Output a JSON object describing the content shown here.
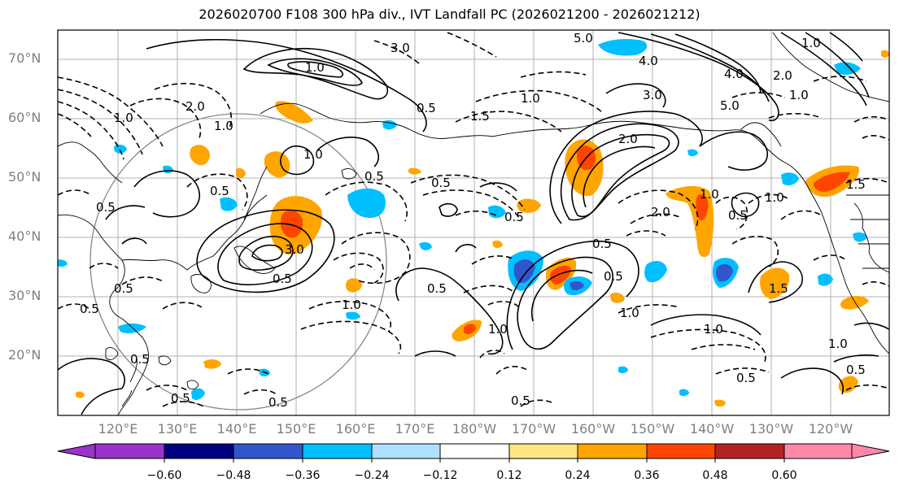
{
  "title": "2026020700 F108 300 hPa div., IVT Landfall PC (2026021200 - 2026021212)",
  "lat_labels": [
    "70°N",
    "60°N",
    "50°N",
    "40°N",
    "30°N",
    "20°N"
  ],
  "lon_labels": [
    "120°E",
    "130°E",
    "140°E",
    "150°E",
    "160°E",
    "170°E",
    "180°W",
    "170°W",
    "160°W",
    "150°W",
    "140°W",
    "130°W",
    "120°W"
  ],
  "colorbar": {
    "ticks": [
      "−0.60",
      "−0.48",
      "−0.36",
      "−0.24",
      "−0.12",
      "0.12",
      "0.24",
      "0.36",
      "0.48",
      "0.60"
    ],
    "colors": [
      "#9933cc",
      "#000080",
      "#3355cc",
      "#00bfff",
      "#b0e0ff",
      "#ffffff",
      "#ffe680",
      "#ffa500",
      "#ff4500",
      "#b22222",
      "#ff88aa"
    ]
  },
  "contour_labels": [
    "5.0",
    "3.0",
    "4.0",
    "5.0",
    "2.0",
    "1.0",
    "0.5",
    "1.0",
    "0.5",
    "2.0",
    "0.5",
    "3.0",
    "1.0",
    "0.5",
    "1.5",
    "0.5",
    "3.0",
    "0.5",
    "2.0",
    "1.0",
    "4.0",
    "1.0",
    "0.5",
    "0.5",
    "1.0",
    "0.5",
    "1.0",
    "1.0",
    "0.5",
    "2.0",
    "0.5",
    "1.0",
    "0.5",
    "1.5",
    "1.0",
    "0.5",
    "1.0",
    "0.5",
    "1.0",
    "1.0",
    "0.5",
    "0.5",
    "0.5",
    "1.5",
    "1.0",
    "0.5",
    "0.5"
  ]
}
